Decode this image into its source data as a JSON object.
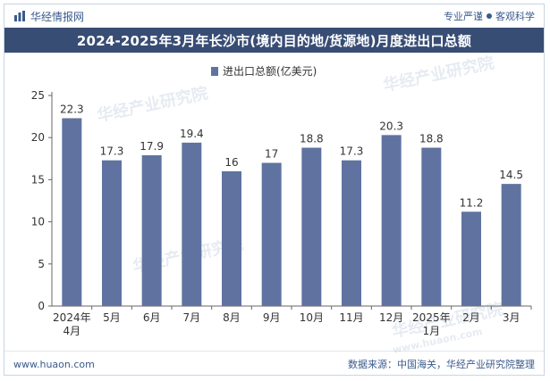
{
  "header": {
    "brand": "华经情报网",
    "tagline_left": "专业严谨",
    "tagline_right": "客观科学"
  },
  "chart_data": {
    "type": "bar",
    "title": "2024-2025年3月年长沙市(境内目的地/货源地)月度进出口总额",
    "legend": "进出口总额(亿美元)",
    "categories": [
      [
        "2024年",
        "4月"
      ],
      [
        "5月"
      ],
      [
        "6月"
      ],
      [
        "7月"
      ],
      [
        "8月"
      ],
      [
        "9月"
      ],
      [
        "10月"
      ],
      [
        "11月"
      ],
      [
        "12月"
      ],
      [
        "2025年",
        "1月"
      ],
      [
        "2月"
      ],
      [
        "3月"
      ]
    ],
    "values": [
      22.3,
      17.3,
      17.9,
      19.4,
      16,
      17,
      18.8,
      17.3,
      20.3,
      18.8,
      11.2,
      14.5
    ],
    "value_labels": [
      "22.3",
      "17.3",
      "17.9",
      "19.4",
      "16",
      "17",
      "18.8",
      "17.3",
      "20.3",
      "18.8",
      "11.2",
      "14.5"
    ],
    "yticks": [
      0,
      5,
      10,
      15,
      20,
      25
    ],
    "ylim": [
      0,
      25
    ],
    "bar_color": "#6073a0"
  },
  "watermark": "华经产业研究院",
  "watermark_url": "www.huaon.com",
  "footer": {
    "website": "www.huaon.com",
    "source": "数据来源：中国海关，华经产业研究院整理"
  }
}
